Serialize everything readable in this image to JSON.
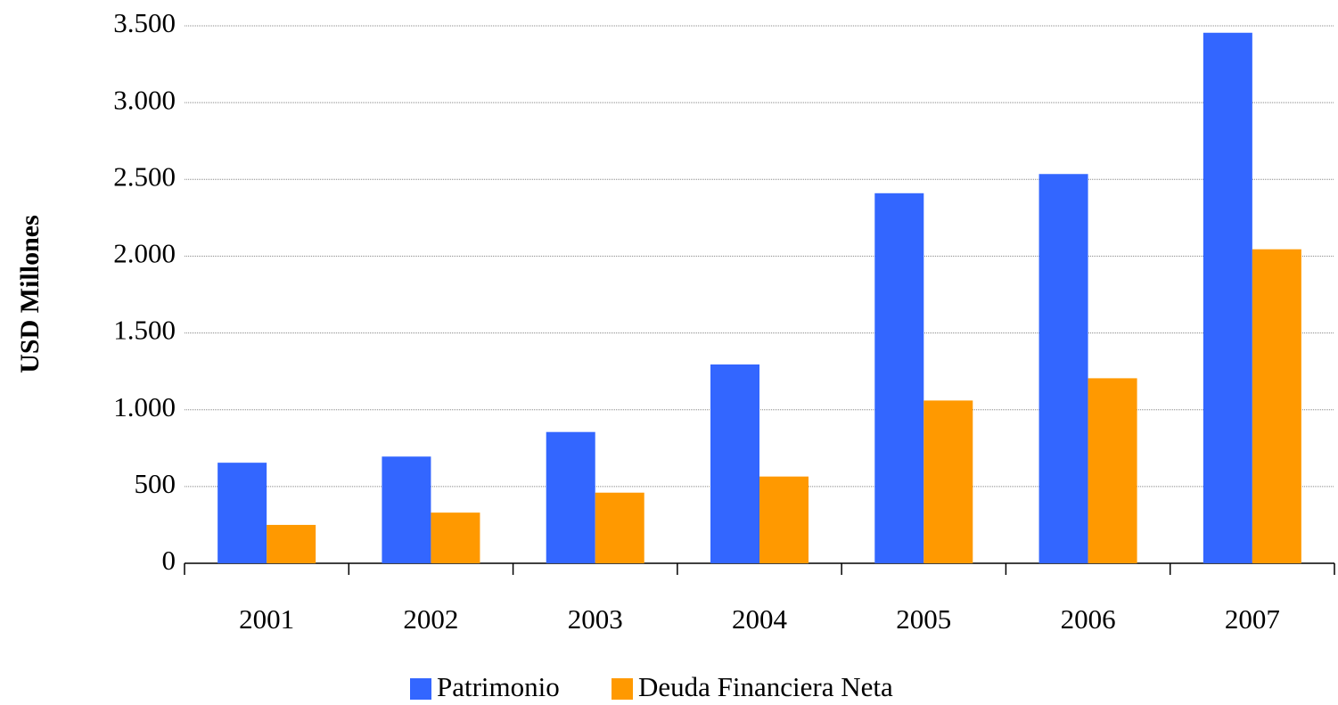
{
  "chart_data": {
    "type": "bar",
    "y_label": "USD Millones",
    "categories": [
      "2001",
      "2002",
      "2003",
      "2004",
      "2005",
      "2006",
      "2007"
    ],
    "series": [
      {
        "name": "Patrimonio",
        "color": "#3366ff",
        "values": [
          655,
          695,
          855,
          1295,
          2410,
          2535,
          3455
        ]
      },
      {
        "name": "Deuda Financiera Neta",
        "color": "#ff9900",
        "values": [
          250,
          330,
          460,
          565,
          1060,
          1205,
          2045
        ]
      }
    ],
    "ylim": [
      0,
      3500
    ],
    "yticks": [
      0,
      500,
      {
        "value": 1000,
        "label": "1.000"
      },
      {
        "value": 1500,
        "label": "1.500"
      },
      {
        "value": 2000,
        "label": "2.000"
      },
      {
        "value": 2500,
        "label": "2.500"
      },
      {
        "value": 3000,
        "label": "3.000"
      },
      {
        "value": 3500,
        "label": "3.500"
      }
    ],
    "grid": true,
    "legend": "bottom"
  }
}
